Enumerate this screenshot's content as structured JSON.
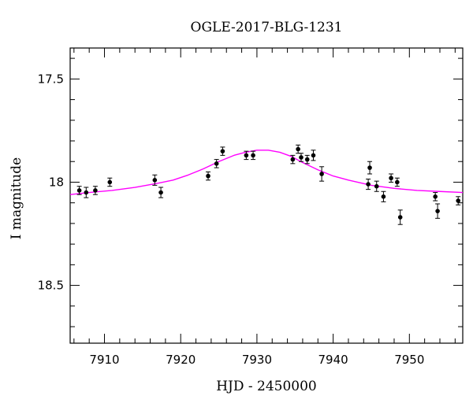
{
  "chart_data": {
    "type": "scatter",
    "title": "OGLE-2017-BLG-1231",
    "xlabel": "HJD - 2450000",
    "ylabel": "I magnitude",
    "xlim": [
      7905.5,
      7957
    ],
    "ylim": [
      17.35,
      18.78
    ],
    "y_inverted": true,
    "grid": false,
    "x_ticks": [
      7910,
      7920,
      7930,
      7940,
      7950
    ],
    "x_tick_labels": [
      "7910",
      "7920",
      "7930",
      "7940",
      "7950"
    ],
    "y_ticks": [
      17.5,
      18.0,
      18.5
    ],
    "y_tick_labels": [
      "17.5",
      "18",
      "18.5"
    ],
    "series": [
      {
        "kind": "points",
        "color": "#000000",
        "points": [
          {
            "x": 7906.7,
            "y": 18.04,
            "err": 0.02
          },
          {
            "x": 7907.6,
            "y": 18.05,
            "err": 0.025
          },
          {
            "x": 7908.8,
            "y": 18.04,
            "err": 0.02
          },
          {
            "x": 7910.7,
            "y": 18.0,
            "err": 0.02
          },
          {
            "x": 7916.6,
            "y": 17.99,
            "err": 0.025
          },
          {
            "x": 7917.4,
            "y": 18.05,
            "err": 0.025
          },
          {
            "x": 7923.6,
            "y": 17.97,
            "err": 0.02
          },
          {
            "x": 7924.7,
            "y": 17.91,
            "err": 0.02
          },
          {
            "x": 7925.5,
            "y": 17.85,
            "err": 0.02
          },
          {
            "x": 7928.6,
            "y": 17.87,
            "err": 0.02
          },
          {
            "x": 7929.5,
            "y": 17.87,
            "err": 0.02
          },
          {
            "x": 7934.7,
            "y": 17.89,
            "err": 0.02
          },
          {
            "x": 7935.4,
            "y": 17.84,
            "err": 0.02
          },
          {
            "x": 7935.8,
            "y": 17.88,
            "err": 0.02
          },
          {
            "x": 7936.6,
            "y": 17.89,
            "err": 0.02
          },
          {
            "x": 7937.4,
            "y": 17.87,
            "err": 0.025
          },
          {
            "x": 7938.5,
            "y": 17.96,
            "err": 0.035
          },
          {
            "x": 7944.6,
            "y": 18.01,
            "err": 0.025
          },
          {
            "x": 7944.8,
            "y": 17.93,
            "err": 0.03
          },
          {
            "x": 7945.7,
            "y": 18.02,
            "err": 0.025
          },
          {
            "x": 7946.6,
            "y": 18.07,
            "err": 0.025
          },
          {
            "x": 7947.6,
            "y": 17.98,
            "err": 0.02
          },
          {
            "x": 7948.4,
            "y": 18.0,
            "err": 0.02
          },
          {
            "x": 7948.8,
            "y": 18.17,
            "err": 0.035
          },
          {
            "x": 7953.4,
            "y": 18.07,
            "err": 0.02
          },
          {
            "x": 7953.7,
            "y": 18.14,
            "err": 0.035
          },
          {
            "x": 7956.4,
            "y": 18.09,
            "err": 0.02
          }
        ]
      },
      {
        "kind": "model-curve",
        "color": "#ff00ff",
        "x": [
          7905.5,
          7908,
          7911,
          7914,
          7917,
          7919,
          7921,
          7923,
          7925,
          7927,
          7928.5,
          7930,
          7931.5,
          7933,
          7934.5,
          7936,
          7938,
          7940,
          7942,
          7945,
          7948,
          7951,
          7954,
          7957
        ],
        "y": [
          18.06,
          18.05,
          18.04,
          18.025,
          18.005,
          17.99,
          17.965,
          17.935,
          17.9,
          17.87,
          17.855,
          17.845,
          17.845,
          17.855,
          17.875,
          17.905,
          17.94,
          17.97,
          17.99,
          18.015,
          18.03,
          18.04,
          18.045,
          18.05
        ]
      }
    ]
  }
}
